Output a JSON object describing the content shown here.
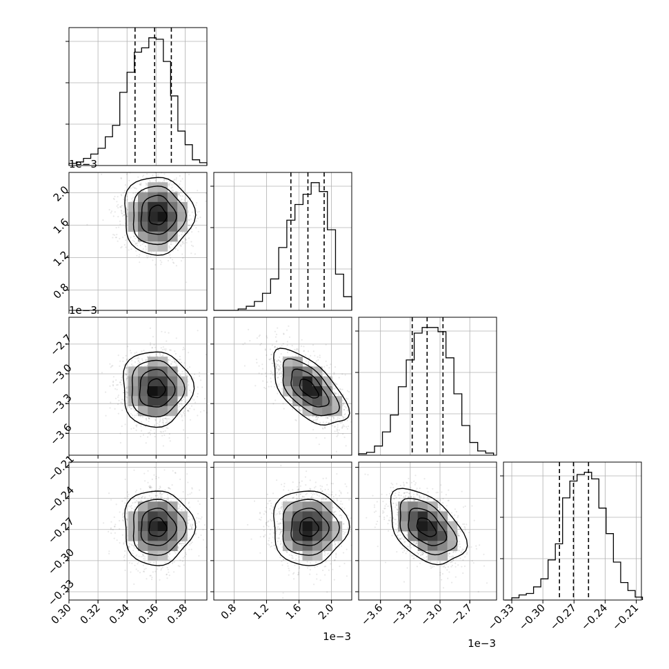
{
  "chart_data": {
    "type": "corner",
    "grid": true,
    "quantile_lines": "dashed",
    "parameters": [
      {
        "range": [
          0.3,
          0.395
        ],
        "ticks": [
          "0.30",
          "0.32",
          "0.34",
          "0.36",
          "0.38"
        ],
        "tick_values": [
          0.3,
          0.32,
          0.34,
          0.36,
          0.38
        ],
        "quantiles": [
          0.3455,
          0.359,
          0.3705
        ],
        "offset_label": ""
      },
      {
        "range": [
          0.55,
          2.25
        ],
        "ticks": [
          "0.8",
          "1.2",
          "1.6",
          "2.0"
        ],
        "tick_values": [
          0.8,
          1.2,
          1.6,
          2.0
        ],
        "quantiles": [
          1.5,
          1.71,
          1.91
        ],
        "offset_label": "1e−3"
      },
      {
        "range": [
          -3.82,
          -2.43
        ],
        "ticks": [
          "−3.6",
          "−3.3",
          "−3.0",
          "−2.7"
        ],
        "tick_values": [
          -3.6,
          -3.3,
          -3.0,
          -2.7
        ],
        "quantiles": [
          -3.28,
          -3.13,
          -2.97
        ],
        "offset_label": "1e−3"
      },
      {
        "range": [
          -0.338,
          -0.205
        ],
        "ticks": [
          "−0.33",
          "−0.30",
          "−0.27",
          "−0.24",
          "−0.21"
        ],
        "tick_values": [
          -0.33,
          -0.3,
          -0.27,
          -0.24,
          -0.21
        ],
        "quantiles": [
          -0.284,
          -0.2705,
          -0.256
        ],
        "offset_label": ""
      }
    ],
    "marginal_histograms": [
      {
        "bins": [
          0.3,
          0.305,
          0.31,
          0.315,
          0.32,
          0.325,
          0.33,
          0.335,
          0.34,
          0.345,
          0.35,
          0.355,
          0.36,
          0.365,
          0.37,
          0.375,
          0.38,
          0.385,
          0.39,
          0.395
        ],
        "counts": [
          3,
          5,
          10,
          16,
          24,
          40,
          56,
          102,
          130,
          158,
          164,
          178,
          176,
          145,
          97,
          48,
          29,
          8,
          4
        ]
      },
      {
        "bins": [
          0.55,
          0.65,
          0.75,
          0.85,
          0.95,
          1.05,
          1.15,
          1.25,
          1.35,
          1.45,
          1.55,
          1.65,
          1.75,
          1.85,
          1.95,
          2.05,
          2.15,
          2.25
        ],
        "counts": [
          0,
          0,
          0,
          2,
          6,
          13,
          25,
          46,
          92,
          132,
          155,
          170,
          187,
          174,
          118,
          53,
          20
        ]
      },
      {
        "bins": [
          -3.82,
          -3.74,
          -3.66,
          -3.58,
          -3.5,
          -3.42,
          -3.34,
          -3.26,
          -3.18,
          -3.1,
          -3.02,
          -2.94,
          -2.86,
          -2.78,
          -2.7,
          -2.62,
          -2.54,
          -2.46
        ],
        "counts": [
          2,
          4,
          13,
          33,
          57,
          97,
          135,
          173,
          181,
          181,
          175,
          138,
          87,
          42,
          18,
          6,
          3
        ]
      },
      {
        "bins": [
          -0.337,
          -0.33,
          -0.323,
          -0.316,
          -0.309,
          -0.302,
          -0.295,
          -0.288,
          -0.281,
          -0.274,
          -0.267,
          -0.26,
          -0.253,
          -0.246,
          -0.239,
          -0.232,
          -0.225,
          -0.218,
          -0.211,
          -0.204
        ],
        "counts": [
          0,
          3,
          7,
          9,
          18,
          29,
          55,
          77,
          140,
          163,
          172,
          175,
          166,
          126,
          91,
          52,
          24,
          13,
          4
        ]
      }
    ],
    "joint_distributions": [
      {
        "x_param": 0,
        "y_param": 1,
        "center": [
          0.361,
          1.72
        ],
        "sd": [
          0.012,
          0.24
        ],
        "corr": 0.0
      },
      {
        "x_param": 0,
        "y_param": 2,
        "center": [
          0.36,
          -3.15
        ],
        "sd": [
          0.012,
          0.19
        ],
        "corr": 0.0
      },
      {
        "x_param": 1,
        "y_param": 2,
        "center": [
          1.72,
          -3.15
        ],
        "sd": [
          0.23,
          0.19
        ],
        "corr": -0.6
      },
      {
        "x_param": 0,
        "y_param": 3,
        "center": [
          0.361,
          -0.268
        ],
        "sd": [
          0.012,
          0.018
        ],
        "corr": 0.0
      },
      {
        "x_param": 1,
        "y_param": 3,
        "center": [
          1.72,
          -0.268
        ],
        "sd": [
          0.23,
          0.018
        ],
        "corr": 0.0
      },
      {
        "x_param": 2,
        "y_param": 3,
        "center": [
          -3.14,
          -0.268
        ],
        "sd": [
          0.19,
          0.018
        ],
        "corr": -0.45
      }
    ]
  }
}
